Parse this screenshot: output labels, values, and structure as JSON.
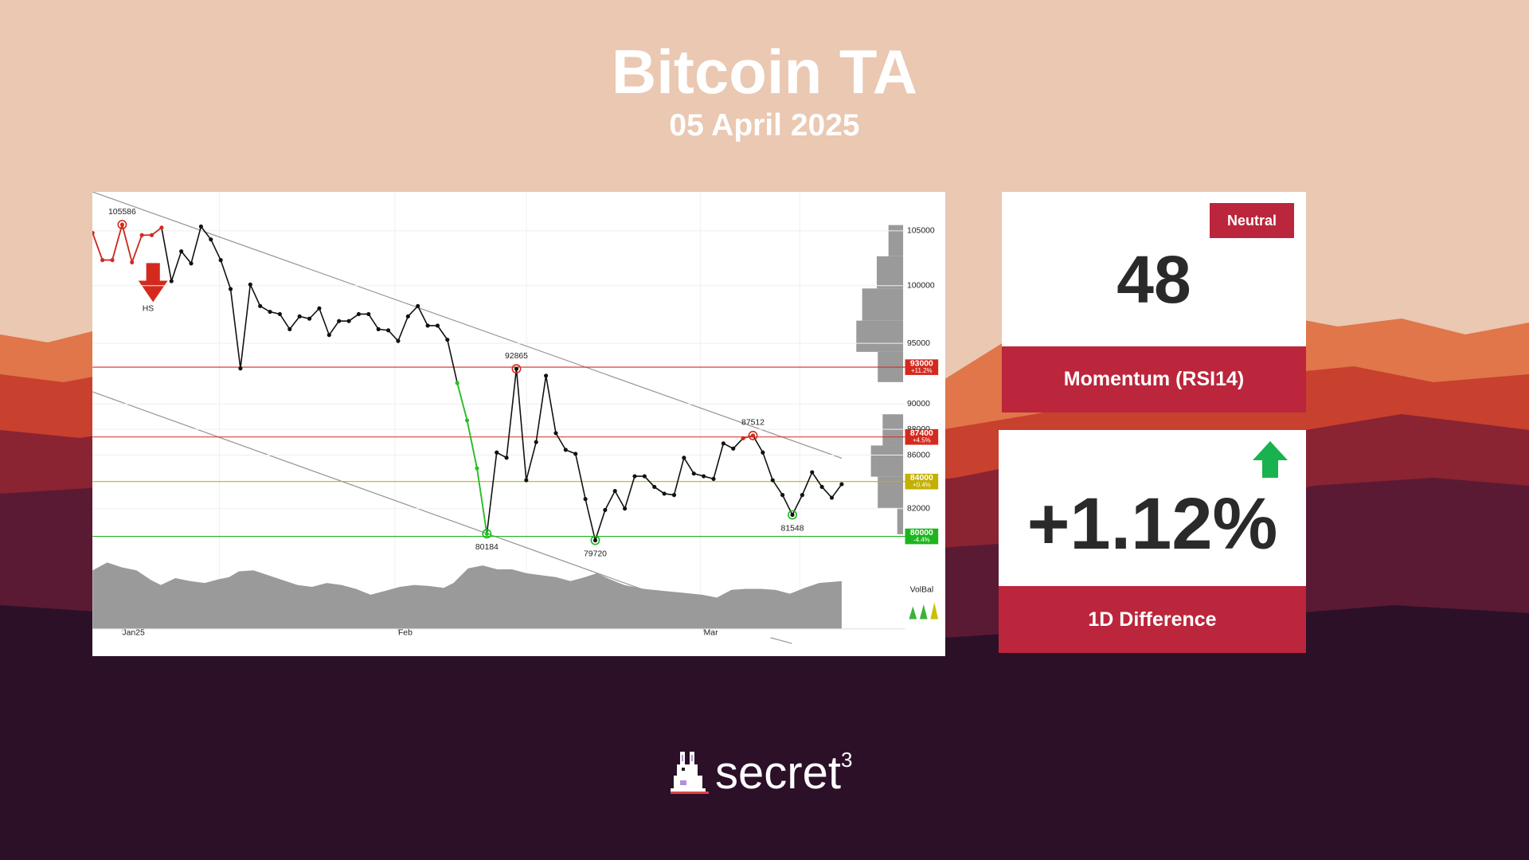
{
  "header": {
    "title": "Bitcoin TA",
    "date": "05 April 2025"
  },
  "chart_data": {
    "type": "line",
    "values": [
      104800,
      102300,
      102300,
      105586,
      102100,
      104600,
      104600,
      105300,
      100400,
      103100,
      102000,
      105400,
      104200,
      102300,
      99700,
      92900,
      100100,
      98200,
      97700,
      97500,
      96200,
      97300,
      97100,
      98000,
      95700,
      96900,
      96900,
      97500,
      97500,
      96200,
      96100,
      95200,
      97300,
      98200,
      96500,
      96500,
      95300,
      91700,
      88700,
      85000,
      80184,
      86200,
      85800,
      92865,
      84100,
      87000,
      92300,
      87700,
      86400,
      86100,
      82700,
      79720,
      81900,
      83300,
      82000,
      84400,
      84400,
      83600,
      83100,
      83000,
      85800,
      84600,
      84400,
      84200,
      86900,
      86500,
      87300,
      87512,
      86200,
      84100,
      83000,
      81548,
      83000,
      84700,
      83600,
      82800,
      83800
    ],
    "color": "#111111",
    "ylim": [
      74000,
      108700
    ],
    "yticks": [
      82000,
      86000,
      88000,
      90000,
      95000,
      100000,
      105000
    ],
    "log_scale": true,
    "grid": true,
    "xlim": [
      0,
      76
    ],
    "xticks": [
      {
        "value": 3,
        "label": "Jan25"
      },
      {
        "value": 31,
        "label": "Feb"
      },
      {
        "value": 62,
        "label": "Mar"
      }
    ],
    "levels": [
      {
        "value": 93000,
        "change": "+11.2%",
        "color": "#d42a1e"
      },
      {
        "value": 87400,
        "change": "+4.5%",
        "color": "#d42a1e"
      },
      {
        "value": 84000,
        "change": "+0.4%",
        "color": "#c4b000"
      },
      {
        "value": 80000,
        "change": "-4.4%",
        "color": "#1db51d"
      }
    ],
    "pivots": [
      {
        "index": 3,
        "position": "above",
        "color": "#d42a1e"
      },
      {
        "index": 43,
        "position": "above",
        "color": "#d42a1e"
      },
      {
        "index": 67,
        "position": "above",
        "color": "#d42a1e"
      },
      {
        "index": 40,
        "position": "below",
        "color": "#1db51d"
      },
      {
        "index": 51,
        "position": "below",
        "color": "#1db51d"
      },
      {
        "index": 71,
        "position": "below",
        "color": "#1db51d"
      }
    ],
    "highlights": [
      {
        "from": 0,
        "to": 7,
        "color": "#d42a1e"
      },
      {
        "from": 37,
        "to": 40,
        "color": "#22c322"
      },
      {
        "from": 66,
        "to": 67,
        "color": "#d42a1e"
      }
    ],
    "pattern": "HS",
    "indicator": "VolBal"
  },
  "momentum": {
    "badge": "Neutral",
    "value": "48",
    "label": "Momentum (RSI14)"
  },
  "difference": {
    "value": "+1.12%",
    "label": "1D Difference"
  },
  "brand": {
    "name": "secret",
    "superscript": "3"
  }
}
